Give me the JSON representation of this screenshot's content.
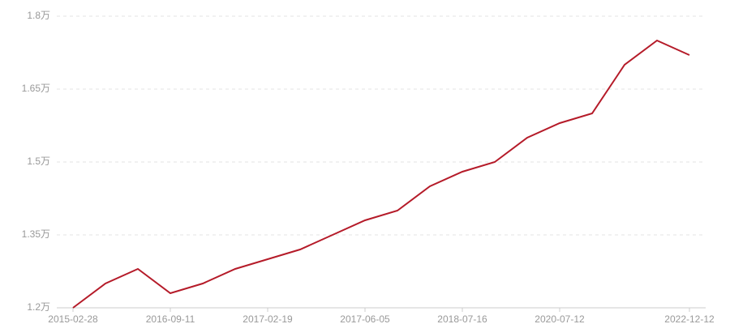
{
  "chart_data": {
    "type": "line",
    "categories": [
      "2015-02-28",
      null,
      null,
      "2016-09-11",
      null,
      null,
      "2017-02-19",
      null,
      null,
      "2017-06-05",
      null,
      null,
      "2018-07-16",
      null,
      null,
      "2020-07-12",
      null,
      null,
      null,
      "2022-12-12"
    ],
    "values": [
      12000,
      12500,
      12800,
      12300,
      12500,
      12800,
      13000,
      13200,
      13500,
      13800,
      14000,
      14500,
      14800,
      15000,
      15500,
      15800,
      16000,
      17000,
      17500,
      17200
    ],
    "color": "#b51b29",
    "ylim": [
      12000,
      18000
    ],
    "yticks": [
      {
        "value": 12000,
        "label": "1.2万"
      },
      {
        "value": 13500,
        "label": "1.35万"
      },
      {
        "value": 15000,
        "label": "1.5万"
      },
      {
        "value": 16500,
        "label": "1.65万"
      },
      {
        "value": 18000,
        "label": "1.8万"
      }
    ],
    "grid": true
  }
}
